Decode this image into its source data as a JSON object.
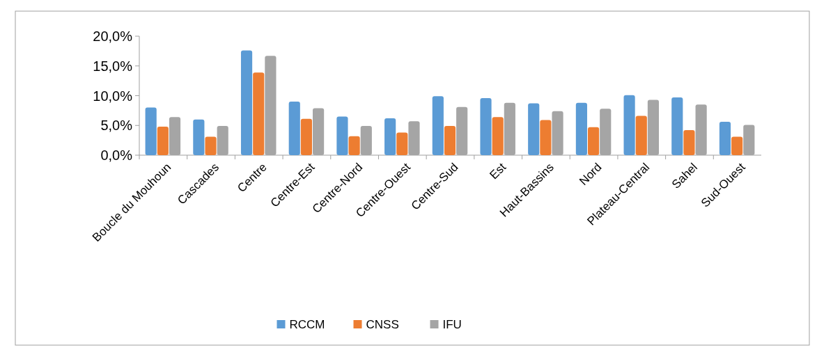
{
  "chart_data": {
    "type": "bar",
    "categories": [
      "Boucle du Mouhoun",
      "Cascades",
      "Centre",
      "Centre-Est",
      "Centre-Nord",
      "Centre-Ouest",
      "Centre-Sud",
      "Est",
      "Haut-Bassins",
      "Nord",
      "Plateau-Central",
      "Sahel",
      "Sud-Ouest"
    ],
    "series": [
      {
        "name": "RCCM",
        "color": "#5b9bd5",
        "values": [
          8.0,
          6.0,
          17.6,
          9.0,
          6.5,
          6.2,
          9.9,
          9.6,
          8.7,
          8.8,
          10.1,
          9.7,
          5.6
        ]
      },
      {
        "name": "CNSS",
        "color": "#ed7d31",
        "values": [
          4.8,
          3.1,
          13.9,
          6.1,
          3.2,
          3.8,
          4.9,
          6.4,
          5.9,
          4.7,
          6.6,
          4.2,
          3.1
        ]
      },
      {
        "name": "IFU",
        "color": "#a5a5a5",
        "values": [
          6.4,
          4.9,
          16.7,
          7.9,
          4.9,
          5.7,
          8.1,
          8.8,
          7.4,
          7.8,
          9.3,
          8.5,
          5.1
        ]
      }
    ],
    "ylim": [
      0,
      20
    ],
    "yticks": [
      {
        "value": 0,
        "label": "0,0%"
      },
      {
        "value": 5,
        "label": "5,0%"
      },
      {
        "value": 10,
        "label": "10,0%"
      },
      {
        "value": 15,
        "label": "15,0%"
      },
      {
        "value": 20,
        "label": "20,0%"
      }
    ],
    "grid": false,
    "legend": "bottom"
  }
}
